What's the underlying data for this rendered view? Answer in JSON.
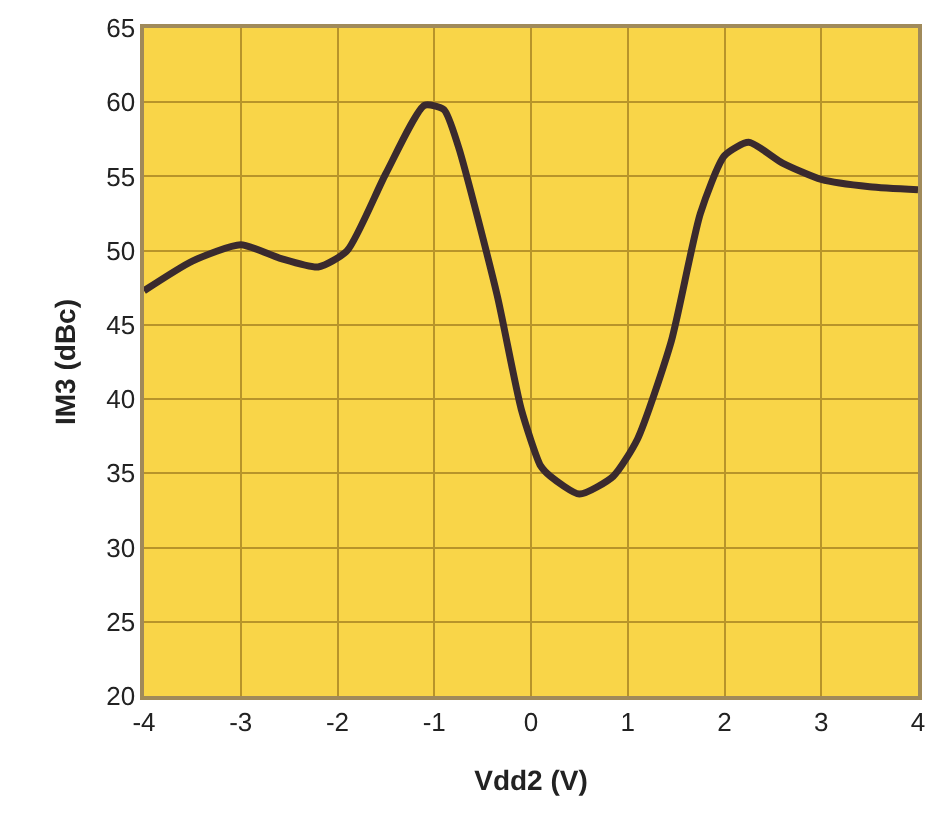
{
  "chart_data": {
    "type": "line",
    "xlabel": "Vdd2 (V)",
    "ylabel": "IM3 (dBc)",
    "x": [
      -4,
      -3.5,
      -3,
      -2.6,
      -2.2,
      -1.9,
      -1.5,
      -1.1,
      -0.9,
      -0.75,
      -0.35,
      -0.1,
      0.1,
      0.2,
      0.5,
      0.85,
      1.1,
      1.45,
      1.75,
      2,
      2.25,
      2.6,
      3,
      3.5,
      4
    ],
    "series": [
      {
        "color": "#3a2a2e",
        "values": [
          47.3,
          49.3,
          50.4,
          49.5,
          48.9,
          50,
          55.2,
          59.8,
          59.5,
          57,
          47,
          39.3,
          35.5,
          34.8,
          33.6,
          34.8,
          37.3,
          43.9,
          52.5,
          56.4,
          57.3,
          55.9,
          54.8,
          54.3,
          54.1
        ]
      }
    ],
    "xlim": [
      -4,
      4
    ],
    "xticks": [
      -4,
      -3,
      -2,
      -1,
      0,
      1,
      2,
      3,
      4
    ],
    "ylim": [
      20,
      65
    ],
    "yticks": [
      20,
      25,
      30,
      35,
      40,
      45,
      50,
      55,
      60,
      65
    ],
    "grid": true,
    "marker": "none",
    "line_style": "solid"
  }
}
